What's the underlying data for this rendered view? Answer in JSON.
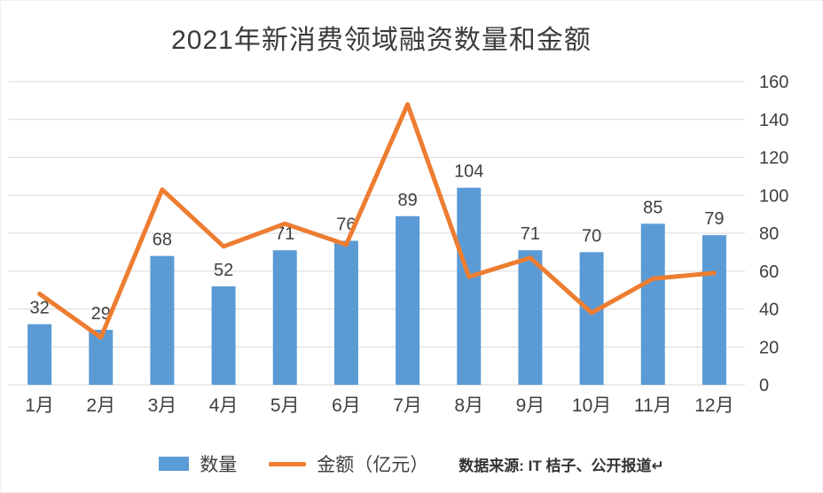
{
  "chart_data": {
    "type": "bar",
    "title": "2021年新消费领域融资数量和金额",
    "categories": [
      "1月",
      "2月",
      "3月",
      "4月",
      "5月",
      "6月",
      "7月",
      "8月",
      "9月",
      "10月",
      "11月",
      "12月"
    ],
    "series": [
      {
        "name": "数量",
        "type": "bar",
        "color": "#5B9BD5",
        "values": [
          32,
          29,
          68,
          52,
          71,
          76,
          89,
          104,
          71,
          70,
          85,
          79
        ]
      },
      {
        "name": "金额（亿元）",
        "type": "line",
        "color": "#ED7D31",
        "values": [
          48,
          25,
          103,
          73,
          85,
          74,
          148,
          57,
          67,
          38,
          56,
          59
        ]
      }
    ],
    "y_axis": {
      "side": "right",
      "min": 0,
      "max": 160,
      "step": 20,
      "ticks": [
        0,
        20,
        40,
        60,
        80,
        100,
        120,
        140,
        160
      ]
    },
    "grid": true,
    "legend_position": "bottom",
    "source_note": "数据来源: IT 桔子、公开报道↵",
    "colors": {
      "bar": "#5B9BD5",
      "line": "#ED7D31",
      "grid": "#D9D9D9",
      "axis_text": "#3f3f3f",
      "label_text": "#3f3f3f",
      "title_text": "#3a3a3a"
    }
  }
}
